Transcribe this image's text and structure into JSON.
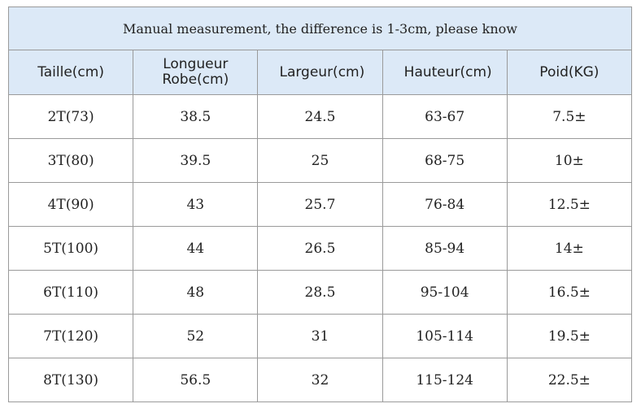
{
  "table": {
    "title": "Manual measurement, the difference is 1-3cm, please know",
    "headers": [
      "Taille(cm)",
      "Longueur Robe(cm)",
      "Largeur(cm)",
      "Hauteur(cm)",
      "Poid(KG)"
    ],
    "rows": [
      [
        "2T(73)",
        "38.5",
        "24.5",
        "63-67",
        "7.5±"
      ],
      [
        "3T(80)",
        "39.5",
        "25",
        "68-75",
        "10±"
      ],
      [
        "4T(90)",
        "43",
        "25.7",
        "76-84",
        "12.5±"
      ],
      [
        "5T(100)",
        "44",
        "26.5",
        "85-94",
        "14±"
      ],
      [
        "6T(110)",
        "48",
        "28.5",
        "95-104",
        "16.5±"
      ],
      [
        "7T(120)",
        "52",
        "31",
        "105-114",
        "19.5±"
      ],
      [
        "8T(130)",
        "56.5",
        "32",
        "115-124",
        "22.5±"
      ]
    ]
  }
}
